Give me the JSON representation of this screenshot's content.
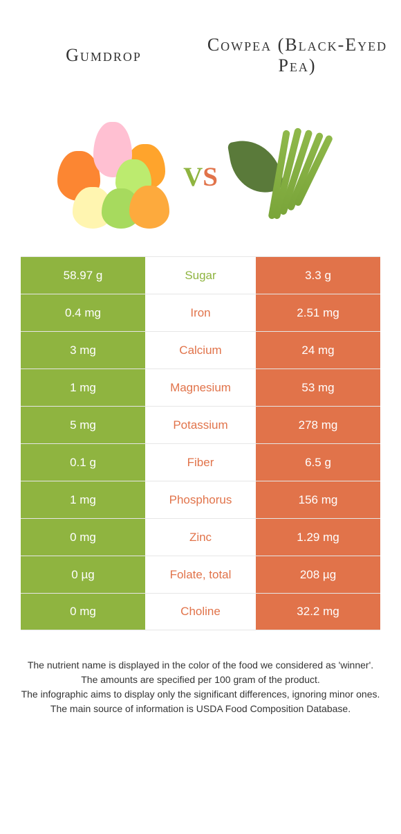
{
  "colors": {
    "left": "#8fb440",
    "right": "#e1734a",
    "border": "#e6e6e6",
    "text": "#333333",
    "background": "#ffffff"
  },
  "header": {
    "left_title": "Gumdrop",
    "right_title": "Cowpea (Black-Eyed Pea)",
    "vs": "vs"
  },
  "rows": [
    {
      "label": "Sugar",
      "left": "58.97 g",
      "right": "3.3 g",
      "winner": "left"
    },
    {
      "label": "Iron",
      "left": "0.4 mg",
      "right": "2.51 mg",
      "winner": "right"
    },
    {
      "label": "Calcium",
      "left": "3 mg",
      "right": "24 mg",
      "winner": "right"
    },
    {
      "label": "Magnesium",
      "left": "1 mg",
      "right": "53 mg",
      "winner": "right"
    },
    {
      "label": "Potassium",
      "left": "5 mg",
      "right": "278 mg",
      "winner": "right"
    },
    {
      "label": "Fiber",
      "left": "0.1 g",
      "right": "6.5 g",
      "winner": "right"
    },
    {
      "label": "Phosphorus",
      "left": "1 mg",
      "right": "156 mg",
      "winner": "right"
    },
    {
      "label": "Zinc",
      "left": "0 mg",
      "right": "1.29 mg",
      "winner": "right"
    },
    {
      "label": "Folate, total",
      "left": "0 µg",
      "right": "208 µg",
      "winner": "right"
    },
    {
      "label": "Choline",
      "left": "0 mg",
      "right": "32.2 mg",
      "winner": "right"
    }
  ],
  "footer": {
    "l1": "The nutrient name is displayed in the color of the food we considered as 'winner'.",
    "l2": "The amounts are specified per 100 gram of the product.",
    "l3": "The infographic aims to display only the significant differences, ignoring minor ones.",
    "l4": "The main source of information is USDA Food Composition Database."
  }
}
